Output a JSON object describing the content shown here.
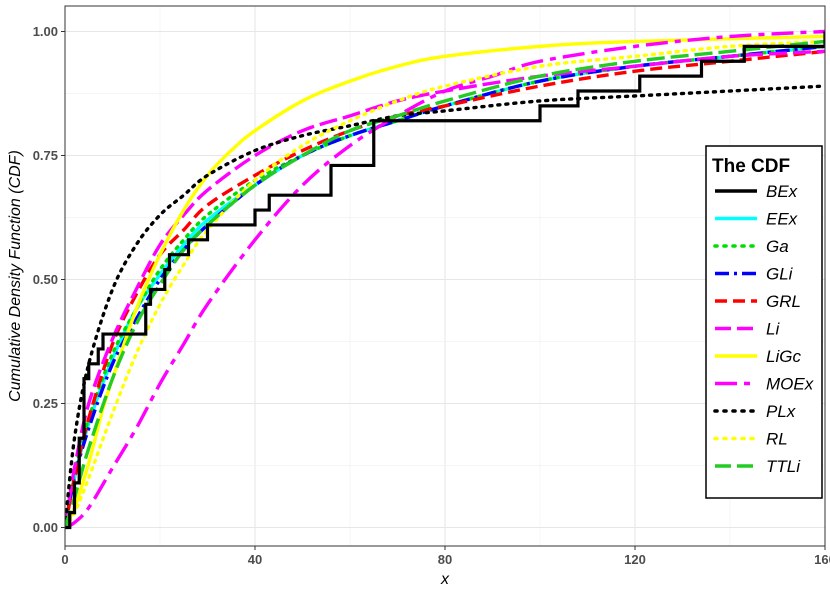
{
  "chart_data": {
    "type": "line",
    "xlabel": "x",
    "ylabel": "Cumulative Density Function (CDF)",
    "xlim": [
      0,
      160
    ],
    "ylim": [
      0,
      1.05
    ],
    "x_ticks": [
      0,
      40,
      80,
      120,
      160
    ],
    "y_ticks": [
      0.0,
      0.25,
      0.5,
      0.75,
      1.0
    ],
    "x_tick_labels": [
      "0",
      "40",
      "80",
      "120",
      "160"
    ],
    "y_tick_labels": [
      "0.00",
      "0.25",
      "0.50",
      "0.75",
      "1.00"
    ],
    "grid": true,
    "legend": {
      "title": "The CDF",
      "placement": "right"
    },
    "series": [
      {
        "name": "BEx",
        "color": "#000000",
        "dash": "solid",
        "step": true,
        "x": [
          0,
          1,
          2,
          3,
          4,
          5,
          7,
          8,
          9,
          17,
          18,
          21,
          22,
          26,
          30,
          36,
          40,
          43,
          56,
          65,
          100,
          108,
          121,
          134,
          143,
          160
        ],
        "y": [
          0,
          0.03,
          0.09,
          0.18,
          0.3,
          0.33,
          0.36,
          0.39,
          0.39,
          0.45,
          0.48,
          0.52,
          0.55,
          0.58,
          0.61,
          0.61,
          0.64,
          0.67,
          0.73,
          0.82,
          0.85,
          0.88,
          0.91,
          0.94,
          0.97,
          1.0
        ]
      },
      {
        "name": "EEx",
        "color": "#00ffff",
        "dash": "solid",
        "x": [
          0,
          2,
          5,
          10,
          15,
          20,
          25,
          30,
          40,
          50,
          60,
          70,
          80,
          100,
          120,
          140,
          160
        ],
        "y": [
          0,
          0.1,
          0.21,
          0.34,
          0.44,
          0.51,
          0.57,
          0.62,
          0.69,
          0.75,
          0.79,
          0.82,
          0.85,
          0.9,
          0.93,
          0.95,
          0.97
        ]
      },
      {
        "name": "Ga",
        "color": "#00dd00",
        "dash": "dotted",
        "x": [
          0,
          2,
          5,
          10,
          15,
          20,
          25,
          30,
          40,
          50,
          60,
          70,
          80,
          100,
          120,
          140,
          160
        ],
        "y": [
          0,
          0.11,
          0.22,
          0.35,
          0.44,
          0.52,
          0.58,
          0.63,
          0.7,
          0.75,
          0.79,
          0.82,
          0.85,
          0.9,
          0.93,
          0.95,
          0.97
        ]
      },
      {
        "name": "GLi",
        "color": "#0000ff",
        "dash": "dashdot",
        "x": [
          0,
          2,
          5,
          10,
          15,
          20,
          25,
          30,
          40,
          50,
          60,
          70,
          80,
          100,
          120,
          140,
          160
        ],
        "y": [
          0,
          0.1,
          0.2,
          0.33,
          0.42,
          0.5,
          0.56,
          0.61,
          0.69,
          0.75,
          0.79,
          0.82,
          0.85,
          0.9,
          0.93,
          0.95,
          0.97
        ]
      },
      {
        "name": "GRL",
        "color": "#ff0000",
        "dash": "dashed",
        "x": [
          0,
          2,
          5,
          10,
          15,
          20,
          25,
          30,
          40,
          50,
          60,
          70,
          80,
          100,
          120,
          140,
          160
        ],
        "y": [
          0,
          0.1,
          0.22,
          0.37,
          0.47,
          0.55,
          0.6,
          0.65,
          0.71,
          0.76,
          0.8,
          0.83,
          0.85,
          0.89,
          0.92,
          0.94,
          0.96
        ]
      },
      {
        "name": "Li",
        "color": "#ff00ff",
        "dash": "longdash",
        "x": [
          0,
          2,
          5,
          10,
          15,
          20,
          25,
          30,
          40,
          50,
          60,
          70,
          80,
          100,
          120,
          140,
          160
        ],
        "y": [
          0,
          0.12,
          0.25,
          0.38,
          0.48,
          0.57,
          0.63,
          0.68,
          0.75,
          0.8,
          0.83,
          0.86,
          0.88,
          0.91,
          0.93,
          0.95,
          0.96
        ]
      },
      {
        "name": "LiGc",
        "color": "#ffff00",
        "dash": "solid",
        "x": [
          0,
          2,
          5,
          8,
          10,
          15,
          20,
          25,
          30,
          35,
          40,
          50,
          60,
          70,
          80,
          100,
          120,
          160
        ],
        "y": [
          0,
          0.04,
          0.13,
          0.24,
          0.3,
          0.44,
          0.55,
          0.64,
          0.71,
          0.76,
          0.8,
          0.86,
          0.9,
          0.93,
          0.95,
          0.97,
          0.98,
          0.99
        ]
      },
      {
        "name": "MOEx",
        "color": "#ff00ff",
        "dash": "twodash",
        "x": [
          0,
          2,
          5,
          10,
          15,
          20,
          25,
          30,
          40,
          50,
          60,
          70,
          80,
          90,
          100,
          120,
          140,
          160
        ],
        "y": [
          0,
          0.01,
          0.04,
          0.12,
          0.2,
          0.29,
          0.37,
          0.45,
          0.58,
          0.69,
          0.77,
          0.83,
          0.88,
          0.91,
          0.94,
          0.97,
          0.99,
          1.0
        ]
      },
      {
        "name": "PLx",
        "color": "#000000",
        "dash": "dotted",
        "x": [
          0,
          2,
          5,
          10,
          15,
          20,
          25,
          30,
          40,
          50,
          60,
          70,
          80,
          100,
          120,
          140,
          160
        ],
        "y": [
          0,
          0.18,
          0.33,
          0.48,
          0.57,
          0.63,
          0.67,
          0.71,
          0.76,
          0.79,
          0.81,
          0.83,
          0.84,
          0.86,
          0.87,
          0.88,
          0.89
        ]
      },
      {
        "name": "RL",
        "color": "#ffff00",
        "dash": "dotted",
        "x": [
          0,
          2,
          5,
          10,
          15,
          20,
          25,
          30,
          40,
          50,
          60,
          70,
          80,
          100,
          120,
          140,
          160
        ],
        "y": [
          0,
          0.03,
          0.1,
          0.23,
          0.35,
          0.45,
          0.53,
          0.6,
          0.7,
          0.77,
          0.82,
          0.86,
          0.89,
          0.93,
          0.95,
          0.97,
          0.98
        ]
      },
      {
        "name": "TTLi",
        "color": "#22cc22",
        "dash": "longdash",
        "x": [
          0,
          2,
          5,
          10,
          15,
          20,
          25,
          30,
          40,
          50,
          60,
          70,
          80,
          100,
          120,
          140,
          160
        ],
        "y": [
          0,
          0.06,
          0.16,
          0.3,
          0.41,
          0.49,
          0.56,
          0.61,
          0.69,
          0.75,
          0.8,
          0.83,
          0.86,
          0.91,
          0.94,
          0.96,
          0.98
        ]
      }
    ]
  }
}
